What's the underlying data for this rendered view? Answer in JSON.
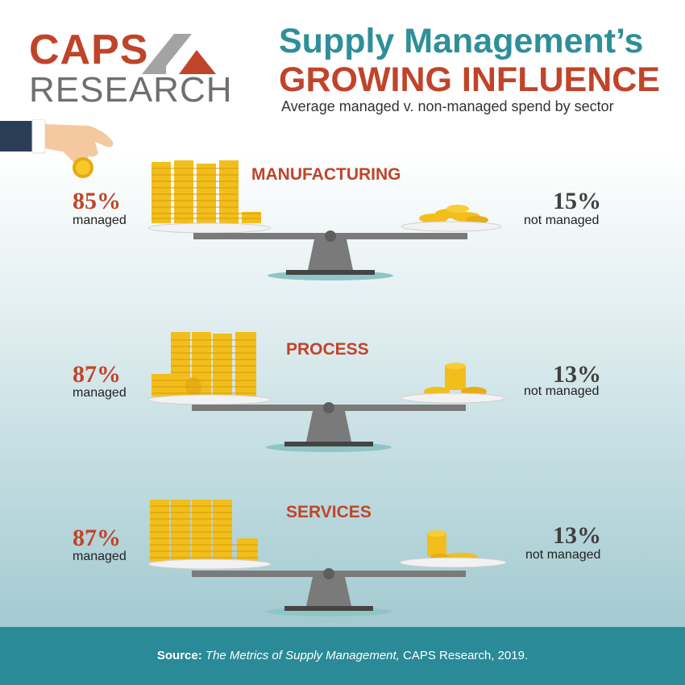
{
  "logo": {
    "line1": "CAPS",
    "line2": "RESEARCH"
  },
  "header": {
    "title_line1": "Supply Management’s",
    "title_line2": "GROWING INFLUENCE",
    "subtitle": "Average managed v. non-managed spend by sector"
  },
  "sectors": [
    {
      "name": "MANUFACTURING",
      "managed_pct": "85%",
      "managed_label": "managed",
      "not_managed_pct": "15%",
      "not_managed_label": "not managed"
    },
    {
      "name": "PROCESS",
      "managed_pct": "87%",
      "managed_label": "managed",
      "not_managed_pct": "13%",
      "not_managed_label": "not managed"
    },
    {
      "name": "SERVICES",
      "managed_pct": "87%",
      "managed_label": "managed",
      "not_managed_pct": "13%",
      "not_managed_label": "not managed"
    }
  ],
  "footer": {
    "source_label": "Source:",
    "source_title": "The Metrics of Supply Management,",
    "source_rest": "CAPS Research, 2019."
  },
  "colors": {
    "accent_red": "#c0442a",
    "accent_teal": "#2e8f9a",
    "footer_bg": "#2a8a98",
    "coin_gold": "#f5c518"
  },
  "icons": [
    "hand-holding-coin-icon",
    "coin-stack-icon",
    "balance-scale-icon",
    "logo-mark-icon"
  ]
}
